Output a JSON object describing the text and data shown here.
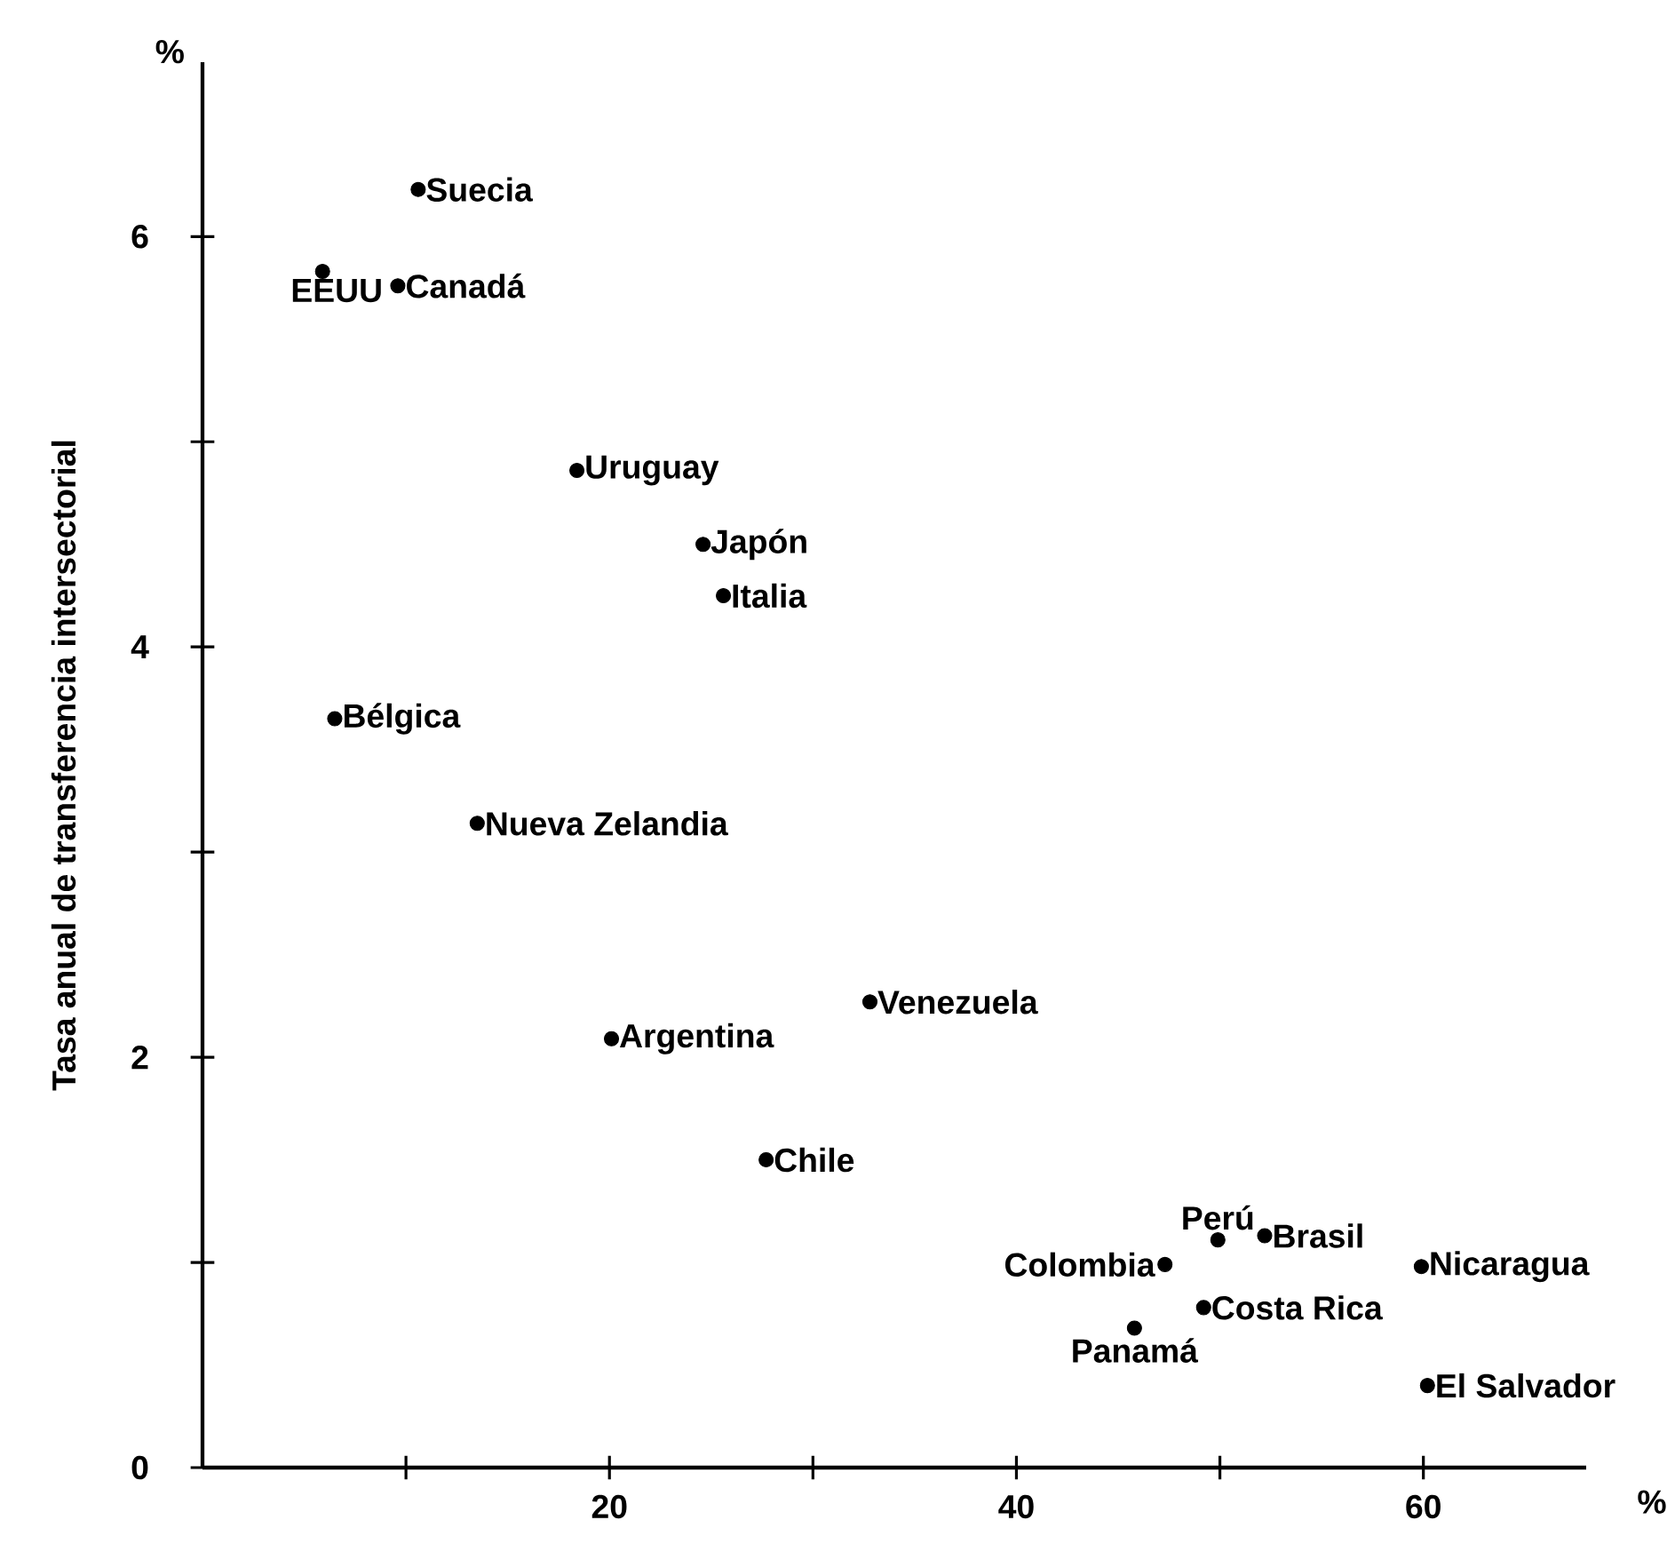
{
  "chart_data": {
    "type": "scatter",
    "xlabel": "%",
    "ylabel": "Tasa anual de transferencia intersectorial",
    "x": [
      10.6,
      5.9,
      9.6,
      18.4,
      24.6,
      25.6,
      6.5,
      13.5,
      20.1,
      32.8,
      27.7,
      49.9,
      52.2,
      47.3,
      59.9,
      49.2,
      45.8,
      60.2
    ],
    "values": [
      6.23,
      5.83,
      5.76,
      4.86,
      4.5,
      4.25,
      3.65,
      3.14,
      2.09,
      2.27,
      1.5,
      1.11,
      1.13,
      0.99,
      0.98,
      0.78,
      0.68,
      0.4
    ],
    "color": "#000000",
    "marker": "circle",
    "xlim": [
      0,
      68
    ],
    "ylim": [
      0,
      6.85
    ],
    "xticks": [
      {
        "value": 10,
        "label": null
      },
      20,
      {
        "value": 30,
        "label": null
      },
      40,
      {
        "value": 50,
        "label": null
      },
      60
    ],
    "yticks": [
      0,
      {
        "value": 1,
        "label": null
      },
      2,
      {
        "value": 3,
        "label": null
      },
      4,
      {
        "value": 5,
        "label": null
      },
      6
    ],
    "grid": false,
    "legend": false,
    "annotations": [
      "%",
      {
        "text": "Suecia",
        "x": 10.6,
        "y": 6.23
      },
      {
        "text": "EEUU",
        "x": 5.9,
        "y": 5.83
      },
      {
        "text": "Canadá",
        "x": 9.6,
        "y": 5.76
      },
      {
        "text": "Uruguay",
        "x": 18.4,
        "y": 4.86
      },
      {
        "text": "Japón",
        "x": 24.6,
        "y": 4.5
      },
      {
        "text": "Italia",
        "x": 25.6,
        "y": 4.25
      },
      {
        "text": "Bélgica",
        "x": 6.5,
        "y": 3.65
      },
      {
        "text": "Nueva Zelandia",
        "x": 13.5,
        "y": 3.14
      },
      {
        "text": "Argentina",
        "x": 20.1,
        "y": 2.09
      },
      {
        "text": "Venezuela",
        "x": 32.8,
        "y": 2.27
      },
      {
        "text": "Chile",
        "x": 27.7,
        "y": 1.5
      },
      {
        "text": "Perú",
        "x": 49.9,
        "y": 1.11
      },
      {
        "text": "Brasil",
        "x": 52.2,
        "y": 1.13
      },
      {
        "text": "Colombia",
        "x": 47.3,
        "y": 0.99
      },
      {
        "text": "Nicaragua",
        "x": 59.9,
        "y": 0.98
      },
      {
        "text": "Costa Rica",
        "x": 49.2,
        "y": 0.78
      },
      {
        "text": "Panamá",
        "x": 45.8,
        "y": 0.68
      },
      {
        "text": "El Salvador",
        "x": 60.2,
        "y": 0.4
      }
    ]
  }
}
